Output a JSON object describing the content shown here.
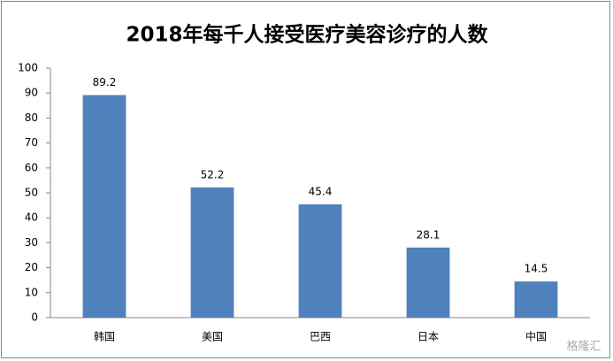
{
  "chart_data": {
    "type": "bar",
    "title": "2018年每千人接受医疗美容诊疗的人数",
    "categories": [
      "韩国",
      "美国",
      "巴西",
      "日本",
      "中国"
    ],
    "values": [
      89.2,
      52.2,
      45.4,
      28.1,
      14.5
    ],
    "color": "#4f81bd",
    "ylim": [
      0,
      100
    ],
    "yticks": [
      0,
      10,
      20,
      30,
      40,
      50,
      60,
      70,
      80,
      90,
      100
    ],
    "grid": false,
    "watermark": "格隆汇"
  }
}
